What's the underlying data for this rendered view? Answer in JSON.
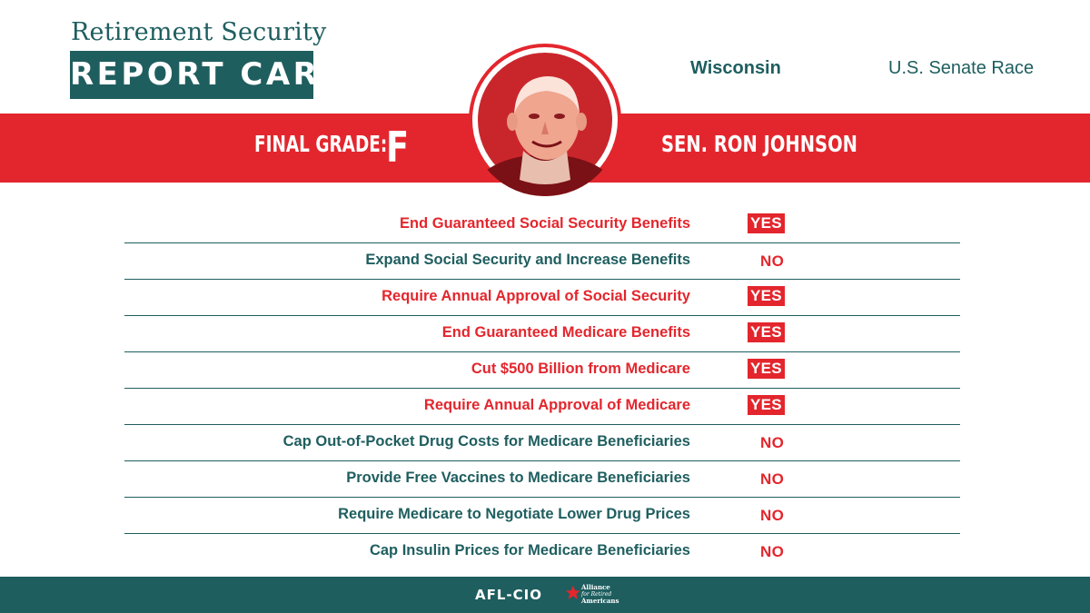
{
  "header": {
    "title_line1": "Retirement Security",
    "title_line2": "REPORT CARD",
    "state": "Wisconsin",
    "race": "U.S. Senate Race"
  },
  "banner": {
    "grade_label": "FINAL GRADE:",
    "grade": "F",
    "candidate": "SEN. RON JOHNSON"
  },
  "positions": [
    {
      "issue": "End Guaranteed Social Security Benefits",
      "answer": "YES"
    },
    {
      "issue": "Expand Social Security and Increase Benefits",
      "answer": "NO"
    },
    {
      "issue": "Require Annual Approval of Social Security",
      "answer": "YES"
    },
    {
      "issue": "End Guaranteed Medicare Benefits",
      "answer": "YES"
    },
    {
      "issue": "Cut $500 Billion from Medicare",
      "answer": "YES"
    },
    {
      "issue": "Require Annual Approval of Medicare",
      "answer": "YES"
    },
    {
      "issue": "Cap Out-of-Pocket Drug Costs for Medicare Beneficiaries",
      "answer": "NO"
    },
    {
      "issue": "Provide Free Vaccines to Medicare Beneficiaries",
      "answer": "NO"
    },
    {
      "issue": "Require Medicare to Negotiate Lower Drug Prices",
      "answer": "NO"
    },
    {
      "issue": "Cap Insulin Prices for Medicare Beneficiaries",
      "answer": "NO"
    }
  ],
  "footer": {
    "logo_afl": "AFL-CIO",
    "logo_alliance": "Alliance for Retired Americans"
  },
  "colors": {
    "teal": "#1f5e5f",
    "red": "#e3262d"
  }
}
